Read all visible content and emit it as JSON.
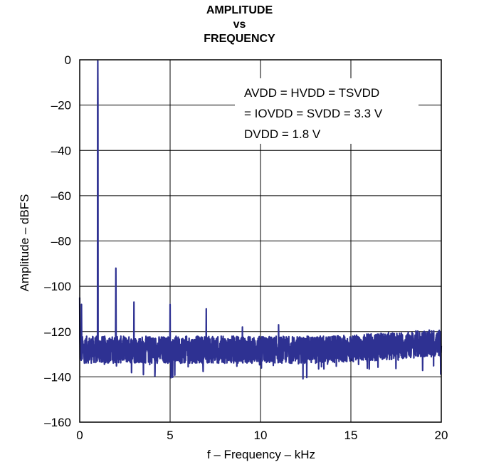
{
  "chart_data": {
    "type": "line",
    "title_lines": [
      "AMPLITUDE",
      "vs",
      "FREQUENCY"
    ],
    "xlabel": "f – Frequency – kHz",
    "ylabel": "Amplitude – dBFS",
    "xlim": [
      0,
      20
    ],
    "ylim": [
      -160,
      0
    ],
    "x_ticks": [
      0,
      5,
      10,
      15,
      20
    ],
    "x_tick_labels": [
      "0",
      "5",
      "10",
      "15",
      "20"
    ],
    "y_ticks": [
      0,
      -20,
      -40,
      -60,
      -80,
      -100,
      -120,
      -140,
      -160
    ],
    "y_tick_labels": [
      "0",
      "–20",
      "–40",
      "–60",
      "–80",
      "–100",
      "–120",
      "–140",
      "–160"
    ],
    "grid": true,
    "annotation_lines": [
      "AVDD = HVDD = TSVDD",
      "= IOVDD = SVDD = 3.3 V",
      "DVDD = 1.8 V"
    ],
    "series_color": "#2e3192",
    "noise_floor_dbfs": -128,
    "peaks": [
      {
        "x": 0.0,
        "y": -105
      },
      {
        "x": 0.1,
        "y": -108
      },
      {
        "x": 1.0,
        "y": -0.5
      },
      {
        "x": 2.0,
        "y": -92
      },
      {
        "x": 3.0,
        "y": -107
      },
      {
        "x": 5.0,
        "y": -108
      },
      {
        "x": 7.0,
        "y": -110
      },
      {
        "x": 9.0,
        "y": -118
      },
      {
        "x": 11.0,
        "y": -117
      }
    ]
  }
}
